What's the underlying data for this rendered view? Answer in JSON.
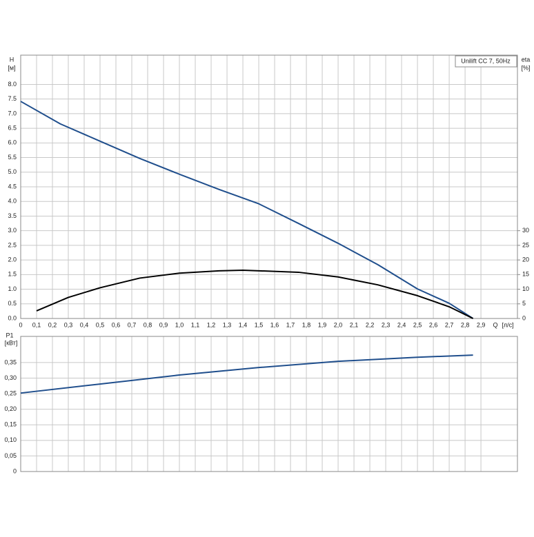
{
  "chart_data": [
    {
      "type": "line",
      "title": "Unilift CC 7, 50Hz",
      "y_label": "H",
      "y_unit": "[м]",
      "y2_label": "eta",
      "y2_unit": "[%]",
      "x_label": "Q",
      "x_unit": "[л/с]",
      "xlim": [
        0,
        3.13
      ],
      "xticks": [
        0,
        {
          "value": 0.1,
          "label": "0,1"
        },
        {
          "value": 0.2,
          "label": "0,2"
        },
        {
          "value": 0.3,
          "label": "0,3"
        },
        {
          "value": 0.4,
          "label": "0,4"
        },
        {
          "value": 0.5,
          "label": "0,5"
        },
        {
          "value": 0.6,
          "label": "0,6"
        },
        {
          "value": 0.7,
          "label": "0,7"
        },
        {
          "value": 0.8,
          "label": "0,8"
        },
        {
          "value": 0.9,
          "label": "0,9"
        },
        {
          "value": 1.0,
          "label": "1,0"
        },
        {
          "value": 1.1,
          "label": "1,1"
        },
        {
          "value": 1.2,
          "label": "1,2"
        },
        {
          "value": 1.3,
          "label": "1,3"
        },
        {
          "value": 1.4,
          "label": "1,4"
        },
        {
          "value": 1.5,
          "label": "1,5"
        },
        {
          "value": 1.6,
          "label": "1,6"
        },
        {
          "value": 1.7,
          "label": "1,7"
        },
        {
          "value": 1.8,
          "label": "1,8"
        },
        {
          "value": 1.9,
          "label": "1,9"
        },
        {
          "value": 2.0,
          "label": "2,0"
        },
        {
          "value": 2.1,
          "label": "2,1"
        },
        {
          "value": 2.2,
          "label": "2,2"
        },
        {
          "value": 2.3,
          "label": "2,3"
        },
        {
          "value": 2.4,
          "label": "2,4"
        },
        {
          "value": 2.5,
          "label": "2,5"
        },
        {
          "value": 2.6,
          "label": "2,6"
        },
        {
          "value": 2.7,
          "label": "2,7"
        },
        {
          "value": 2.8,
          "label": "2,8"
        },
        {
          "value": 2.9,
          "label": "2,9"
        }
      ],
      "ylim": [
        0,
        9
      ],
      "yticks": [
        {
          "value": 0,
          "label": "0.0"
        },
        0.5,
        {
          "value": 1,
          "label": "1.0"
        },
        1.5,
        {
          "value": 2,
          "label": "2.0"
        },
        2.5,
        {
          "value": 3,
          "label": "3.0"
        },
        3.5,
        {
          "value": 4,
          "label": "4.0"
        },
        4.5,
        {
          "value": 5,
          "label": "5.0"
        },
        5.5,
        {
          "value": 6,
          "label": "6.0"
        },
        6.5,
        {
          "value": 7,
          "label": "7.0"
        },
        7.5,
        {
          "value": 8,
          "label": "8.0"
        }
      ],
      "y2lim": [
        0,
        90
      ],
      "y2ticks": [
        0,
        5,
        10,
        15,
        20,
        25,
        30
      ],
      "grid": true,
      "series": [
        {
          "color": "#1f4e8c",
          "x": [
            0,
            0.25,
            0.5,
            0.75,
            1.0,
            1.25,
            1.5,
            1.75,
            2.0,
            2.25,
            2.5,
            2.7,
            2.85
          ],
          "values": [
            7.42,
            6.65,
            6.06,
            5.47,
            4.93,
            4.41,
            3.92,
            3.25,
            2.57,
            1.84,
            1.01,
            0.52,
            0
          ]
        },
        {
          "color": "#000000",
          "axis": "y2",
          "x": [
            0.1,
            0.3,
            0.5,
            0.75,
            1.0,
            1.25,
            1.4,
            1.75,
            2.0,
            2.25,
            2.5,
            2.7,
            2.85
          ],
          "values": [
            2.6,
            7.2,
            10.5,
            13.8,
            15.5,
            16.3,
            16.5,
            15.8,
            14.2,
            11.5,
            7.8,
            4,
            0
          ]
        }
      ]
    },
    {
      "type": "line",
      "y_label": "P1",
      "y_unit": "[кВт]",
      "xlim": [
        0,
        3.13
      ],
      "ylim": [
        0,
        0.434
      ],
      "yticks": [
        0,
        {
          "value": 0.05,
          "label": "0,05"
        },
        {
          "value": 0.1,
          "label": "0,10"
        },
        {
          "value": 0.15,
          "label": "0,15"
        },
        {
          "value": 0.2,
          "label": "0,20"
        },
        {
          "value": 0.25,
          "label": "0,25"
        },
        {
          "value": 0.3,
          "label": "0,30"
        },
        {
          "value": 0.35,
          "label": "0,35"
        }
      ],
      "grid": true,
      "series": [
        {
          "color": "#1f4e8c",
          "x": [
            0,
            0.5,
            1.0,
            1.5,
            2.0,
            2.5,
            2.85
          ],
          "values": [
            0.252,
            0.281,
            0.31,
            0.334,
            0.354,
            0.367,
            0.374
          ]
        }
      ]
    }
  ]
}
